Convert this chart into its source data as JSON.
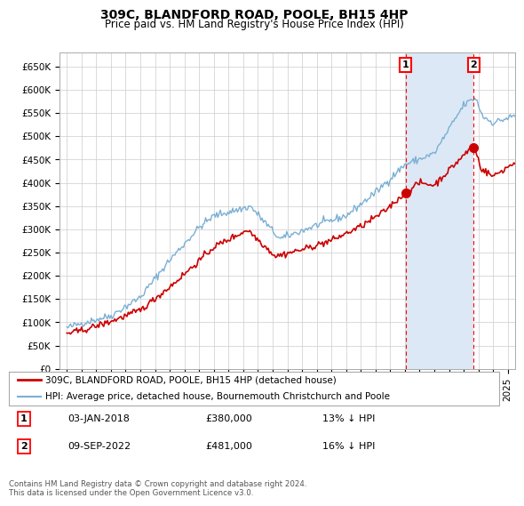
{
  "title": "309C, BLANDFORD ROAD, POOLE, BH15 4HP",
  "subtitle": "Price paid vs. HM Land Registry's House Price Index (HPI)",
  "ylabel_ticks": [
    "£0",
    "£50K",
    "£100K",
    "£150K",
    "£200K",
    "£250K",
    "£300K",
    "£350K",
    "£400K",
    "£450K",
    "£500K",
    "£550K",
    "£600K",
    "£650K"
  ],
  "ytick_values": [
    0,
    50000,
    100000,
    150000,
    200000,
    250000,
    300000,
    350000,
    400000,
    450000,
    500000,
    550000,
    600000,
    650000
  ],
  "ylim": [
    0,
    680000
  ],
  "xlim_start": 1994.5,
  "xlim_end": 2025.5,
  "hpi_color": "#7aafd4",
  "price_color": "#cc0000",
  "sale1_date": 2018.04,
  "sale1_price": 380000,
  "sale1_label": "1",
  "sale2_date": 2022.69,
  "sale2_price": 481000,
  "sale2_label": "2",
  "shade_color": "#dce8f5",
  "legend_line1": "309C, BLANDFORD ROAD, POOLE, BH15 4HP (detached house)",
  "legend_line2": "HPI: Average price, detached house, Bournemouth Christchurch and Poole",
  "table_row1": [
    "1",
    "03-JAN-2018",
    "£380,000",
    "13% ↓ HPI"
  ],
  "table_row2": [
    "2",
    "09-SEP-2022",
    "£481,000",
    "16% ↓ HPI"
  ],
  "footnote": "Contains HM Land Registry data © Crown copyright and database right 2024.\nThis data is licensed under the Open Government Licence v3.0.",
  "background_color": "#ffffff",
  "grid_color": "#cccccc"
}
